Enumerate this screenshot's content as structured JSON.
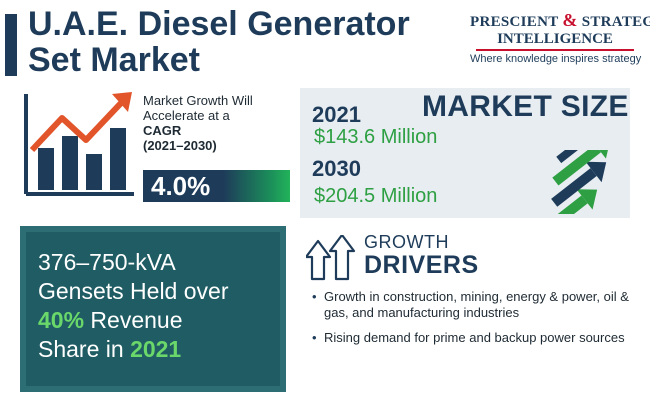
{
  "title": {
    "line1": "U.A.E. Diesel Generator",
    "line2": "Set Market"
  },
  "logo": {
    "line1_a": "PRESCIENT",
    "ampersand": "&",
    "line1_b": "STRATEGIC",
    "line2": "INTELLIGENCE",
    "tagline": "Where knowledge inspires strategy"
  },
  "growth": {
    "text_a": "Market Growth Will Accelerate at a ",
    "cagr_word": "CAGR",
    "period": "(2021–2030)",
    "rate": "4.0%",
    "icon": "bar-chart-rising-arrow-icon"
  },
  "market_size": {
    "title": "MARKET SIZE",
    "year1": "2021",
    "value1": "$143.6 Million",
    "year2": "2030",
    "value2": "$204.5 Million",
    "icon": "upward-arrows-icon"
  },
  "segment": {
    "line1": "376–750-kVA",
    "line2": "Gensets Held over",
    "pct": "40%",
    "line3_rest": " Revenue",
    "line4_a": "Share in ",
    "year": "2021"
  },
  "drivers": {
    "heading1": "GROWTH",
    "heading2": "DRIVERS",
    "icon": "growth-arrows-icon",
    "items": [
      "Growth in construction, mining, energy & power, oil & gas, and manufacturing industries",
      "Rising demand for prime and backup power sources"
    ]
  },
  "colors": {
    "navy": "#1e3c5a",
    "green": "#2ea043",
    "teal": "#1f5c63",
    "red": "#c8102e",
    "arrow_orange": "#e2552b"
  }
}
